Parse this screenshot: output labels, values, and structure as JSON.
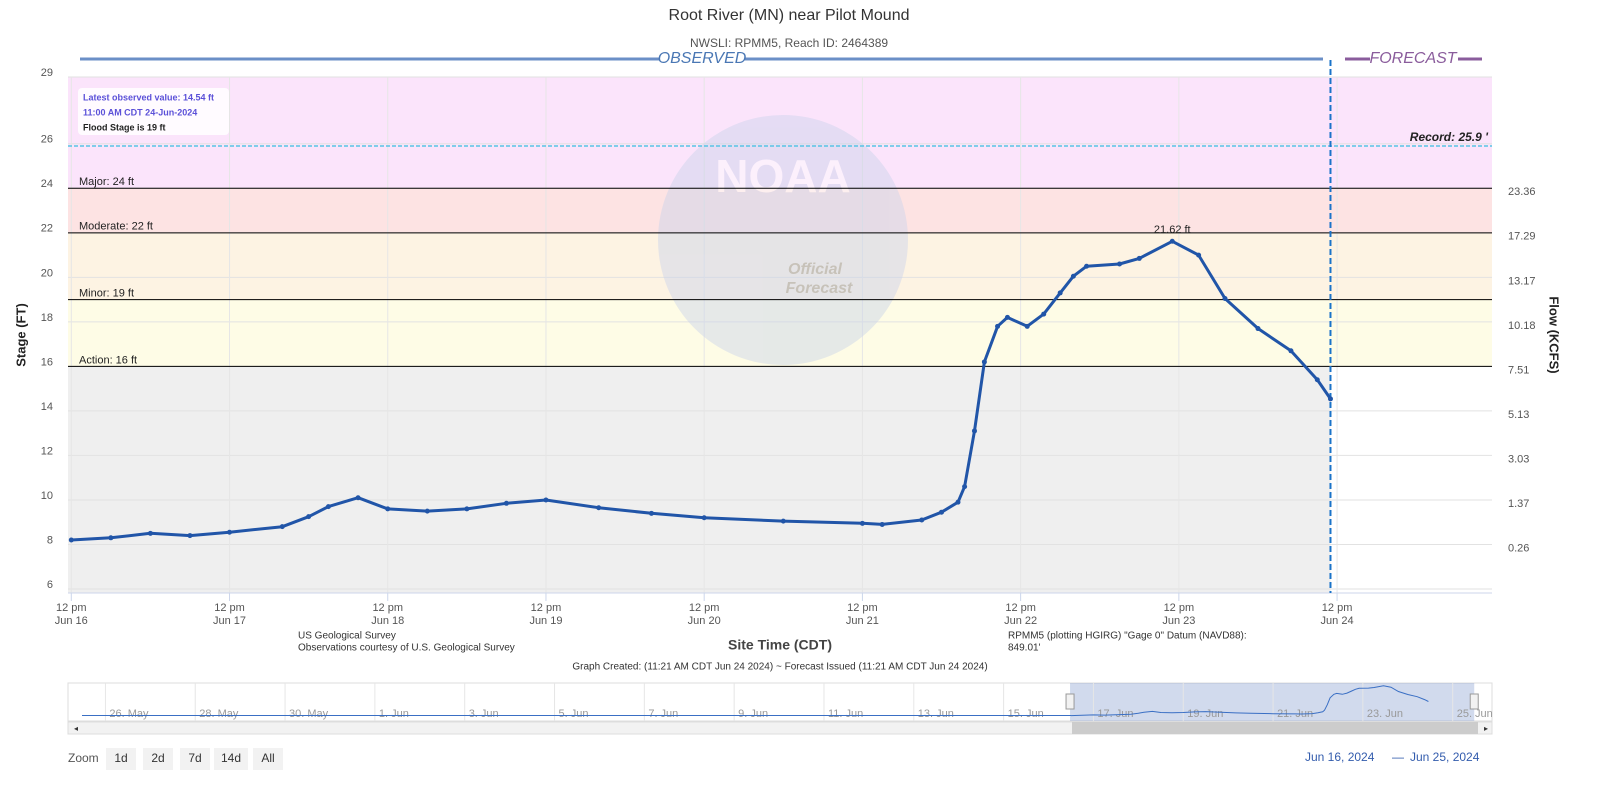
{
  "chart_data": {
    "type": "line",
    "title": "Root River (MN) near Pilot Mound",
    "subtitle": "NWSLI: RPMM5, Reach ID: 2464389",
    "observed_label": "OBSERVED",
    "forecast_label": "FORECAST",
    "y_label": "Stage (FT)",
    "x_label": "Site Time (CDT)",
    "xlim": [
      "2024-06-16 11:30",
      "2024-06-25 11:30"
    ],
    "ylim": [
      6,
      29
    ],
    "yticks": [
      6,
      8,
      10,
      12,
      14,
      16,
      18,
      20,
      22,
      24,
      26,
      29
    ],
    "xticks": [
      {
        "value": "2024-06-16 12:00",
        "label": "12 pm",
        "sublabel": "Jun 16"
      },
      {
        "value": "2024-06-17 12:00",
        "label": "12 pm",
        "sublabel": "Jun 17"
      },
      {
        "value": "2024-06-18 12:00",
        "label": "12 pm",
        "sublabel": "Jun 18"
      },
      {
        "value": "2024-06-19 12:00",
        "label": "12 pm",
        "sublabel": "Jun 19"
      },
      {
        "value": "2024-06-20 12:00",
        "label": "12 pm",
        "sublabel": "Jun 20"
      },
      {
        "value": "2024-06-21 12:00",
        "label": "12 pm",
        "sublabel": "Jun 21"
      },
      {
        "value": "2024-06-22 12:00",
        "label": "12 pm",
        "sublabel": "Jun 22"
      },
      {
        "value": "2024-06-23 12:00",
        "label": "12 pm",
        "sublabel": "Jun 23"
      },
      {
        "value": "2024-06-24 12:00",
        "label": "12 pm",
        "sublabel": "Jun 24"
      }
    ],
    "grid": true,
    "flow_axis": {
      "label": "Flow (KCFS)",
      "ticks": [
        {
          "stage": 8,
          "flow": 0.26
        },
        {
          "stage": 10,
          "flow": 1.37
        },
        {
          "stage": 12,
          "flow": 3.03
        },
        {
          "stage": 14,
          "flow": 5.13
        },
        {
          "stage": 16,
          "flow": 7.51
        },
        {
          "stage": 18,
          "flow": 10.18
        },
        {
          "stage": 20,
          "flow": 13.17
        },
        {
          "stage": 22,
          "flow": 17.29
        },
        {
          "stage": 24,
          "flow": 23.36
        }
      ]
    },
    "normal_color": "#efefef",
    "flood_categories": [
      {
        "label": "Action: 16 ft",
        "stage": 16,
        "color": "#fefce6"
      },
      {
        "label": "Minor: 19 ft",
        "stage": 19,
        "color": "#fdf3e3"
      },
      {
        "label": "Moderate: 22 ft",
        "stage": 22,
        "color": "#fde3e3"
      },
      {
        "label": "Major: 24 ft",
        "stage": 24,
        "color": "#fbe4fb"
      }
    ],
    "record": {
      "label": "Record: 25.9 '",
      "stage": 25.9
    },
    "info_box": [
      "Latest observed value: 14.54 ft",
      "11:00 AM CDT 24-Jun-2024",
      "Flood Stage is 19 ft"
    ],
    "now": "2024-06-24 11:00",
    "watermark": {
      "logo": "NOAA",
      "line1": "Official",
      "line2": "Forecast"
    },
    "series": [
      {
        "name": "Observed",
        "color": "#2155a8",
        "x": [
          "2024-06-16 12:00",
          "2024-06-16 18:00",
          "2024-06-17 00:00",
          "2024-06-17 06:00",
          "2024-06-17 12:00",
          "2024-06-17 20:00",
          "2024-06-18 00:00",
          "2024-06-18 03:00",
          "2024-06-18 07:30",
          "2024-06-18 12:00",
          "2024-06-18 18:00",
          "2024-06-19 00:00",
          "2024-06-19 06:00",
          "2024-06-19 12:00",
          "2024-06-19 20:00",
          "2024-06-20 04:00",
          "2024-06-20 12:00",
          "2024-06-21 00:00",
          "2024-06-21 12:00",
          "2024-06-21 15:00",
          "2024-06-21 21:00",
          "2024-06-22 00:00",
          "2024-06-22 02:30",
          "2024-06-22 03:30",
          "2024-06-22 05:00",
          "2024-06-22 06:30",
          "2024-06-22 08:30",
          "2024-06-22 10:00",
          "2024-06-22 13:00",
          "2024-06-22 15:30",
          "2024-06-22 18:00",
          "2024-06-22 20:00",
          "2024-06-22 22:00",
          "2024-06-23 03:00",
          "2024-06-23 06:00",
          "2024-06-23 11:00",
          "2024-06-23 15:00",
          "2024-06-23 19:00",
          "2024-06-24 00:00",
          "2024-06-24 05:00",
          "2024-06-24 09:00",
          "2024-06-24 11:00"
        ],
        "values": [
          8.2,
          8.3,
          8.5,
          8.4,
          8.55,
          8.8,
          9.25,
          9.7,
          10.1,
          9.6,
          9.5,
          9.6,
          9.85,
          10.0,
          9.65,
          9.4,
          9.2,
          9.05,
          8.95,
          8.9,
          9.1,
          9.45,
          9.9,
          10.6,
          13.1,
          16.2,
          17.8,
          18.2,
          17.8,
          18.35,
          19.3,
          20.05,
          20.5,
          20.6,
          20.85,
          21.62,
          21.0,
          19.05,
          17.7,
          16.7,
          15.4,
          14.54
        ],
        "value_labels": [
          null,
          null,
          null,
          null,
          null,
          null,
          null,
          null,
          null,
          null,
          null,
          null,
          null,
          null,
          null,
          null,
          null,
          null,
          null,
          null,
          null,
          null,
          null,
          null,
          null,
          null,
          null,
          null,
          null,
          null,
          null,
          null,
          null,
          null,
          null,
          "21.62 ft",
          null,
          null,
          null,
          null,
          null,
          null
        ]
      }
    ],
    "credits_left": [
      "US Geological Survey",
      "Observations courtesy of U.S. Geological Survey"
    ],
    "credits_right": [
      "RPMM5 (plotting HGIRG) \"Gage 0\" Datum (NAVD88):",
      "849.01'"
    ],
    "graph_created": "Graph Created: (11:21 AM CDT Jun 24 2024) ~ Forecast Issued (11:21 AM CDT Jun 24 2024)",
    "navigator": {
      "xlim": [
        "2024-05-25 04:00",
        "2024-06-25 21:00"
      ],
      "labels": [
        {
          "value": "2024-05-26 00:00",
          "label": "26. May"
        },
        {
          "value": "2024-05-28 00:00",
          "label": "28. May"
        },
        {
          "value": "2024-05-30 00:00",
          "label": "30. May"
        },
        {
          "value": "2024-06-01 00:00",
          "label": "1. Jun"
        },
        {
          "value": "2024-06-03 00:00",
          "label": "3. Jun"
        },
        {
          "value": "2024-06-05 00:00",
          "label": "5. Jun"
        },
        {
          "value": "2024-06-07 00:00",
          "label": "7. Jun"
        },
        {
          "value": "2024-06-09 00:00",
          "label": "9. Jun"
        },
        {
          "value": "2024-06-11 00:00",
          "label": "11. Jun"
        },
        {
          "value": "2024-06-13 00:00",
          "label": "13. Jun"
        },
        {
          "value": "2024-06-15 00:00",
          "label": "15. Jun"
        },
        {
          "value": "2024-06-17 00:00",
          "label": "17. Jun"
        },
        {
          "value": "2024-06-19 00:00",
          "label": "19. Jun"
        },
        {
          "value": "2024-06-21 00:00",
          "label": "21. Jun"
        },
        {
          "value": "2024-06-23 00:00",
          "label": "23. Jun"
        },
        {
          "value": "2024-06-25 00:00",
          "label": "25. Jun"
        }
      ]
    },
    "zoom": {
      "label": "Zoom",
      "buttons": [
        "1d",
        "2d",
        "7d",
        "14d",
        "All"
      ]
    },
    "range": {
      "from": "Jun 16, 2024",
      "separator": "—",
      "to": "Jun 25, 2024"
    }
  }
}
